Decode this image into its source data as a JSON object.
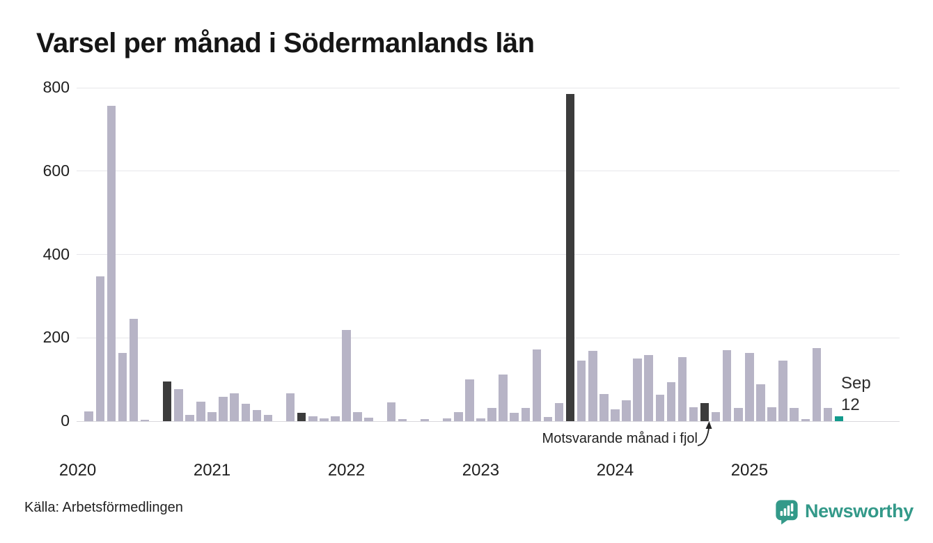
{
  "title": "Varsel per månad i Södermanlands län",
  "source": "Källa: Arbetsförmedlingen",
  "annotation": {
    "text": "Motsvarande månad i fjol"
  },
  "last_point_label": {
    "line1": "Sep",
    "line2": "12"
  },
  "brand": {
    "name": "Newsworthy",
    "color": "#339989"
  },
  "chart_data": {
    "type": "bar",
    "title": "Varsel per månad i Södermanlands län",
    "xlabel": "",
    "ylabel": "",
    "ylim": [
      0,
      800
    ],
    "yticks": [
      0,
      200,
      400,
      600,
      800
    ],
    "grid": "horizontal",
    "x_year_labels": [
      "2020",
      "2021",
      "2022",
      "2023",
      "2024",
      "2025"
    ],
    "colors": {
      "normal": "#b7b4c6",
      "compare": "#3c3c3c",
      "current": "#129a8c"
    },
    "legend": {
      "compare_meaning": "Motsvarande månad i fjol",
      "current_meaning": "Sep 12"
    },
    "series": [
      {
        "m": "Jan 2020",
        "v": 0,
        "t": "normal"
      },
      {
        "m": "Feb 2020",
        "v": 24,
        "t": "normal"
      },
      {
        "m": "Mar 2020",
        "v": 348,
        "t": "normal"
      },
      {
        "m": "Apr 2020",
        "v": 757,
        "t": "normal"
      },
      {
        "m": "May 2020",
        "v": 163,
        "t": "normal"
      },
      {
        "m": "Jun 2020",
        "v": 245,
        "t": "normal"
      },
      {
        "m": "Jul 2020",
        "v": 4,
        "t": "normal"
      },
      {
        "m": "Aug 2020",
        "v": 0,
        "t": "normal"
      },
      {
        "m": "Sep 2020",
        "v": 95,
        "t": "compare"
      },
      {
        "m": "Oct 2020",
        "v": 76,
        "t": "normal"
      },
      {
        "m": "Nov 2020",
        "v": 15,
        "t": "normal"
      },
      {
        "m": "Dec 2020",
        "v": 46,
        "t": "normal"
      },
      {
        "m": "Jan 2021",
        "v": 22,
        "t": "normal"
      },
      {
        "m": "Feb 2021",
        "v": 59,
        "t": "normal"
      },
      {
        "m": "Mar 2021",
        "v": 67,
        "t": "normal"
      },
      {
        "m": "Apr 2021",
        "v": 42,
        "t": "normal"
      },
      {
        "m": "May 2021",
        "v": 27,
        "t": "normal"
      },
      {
        "m": "Jun 2021",
        "v": 15,
        "t": "normal"
      },
      {
        "m": "Jul 2021",
        "v": 0,
        "t": "normal"
      },
      {
        "m": "Aug 2021",
        "v": 67,
        "t": "normal"
      },
      {
        "m": "Sep 2021",
        "v": 20,
        "t": "compare"
      },
      {
        "m": "Oct 2021",
        "v": 11,
        "t": "normal"
      },
      {
        "m": "Nov 2021",
        "v": 6,
        "t": "normal"
      },
      {
        "m": "Dec 2021",
        "v": 11,
        "t": "normal"
      },
      {
        "m": "Jan 2022",
        "v": 218,
        "t": "normal"
      },
      {
        "m": "Feb 2022",
        "v": 21,
        "t": "normal"
      },
      {
        "m": "Mar 2022",
        "v": 8,
        "t": "normal"
      },
      {
        "m": "Apr 2022",
        "v": 0,
        "t": "normal"
      },
      {
        "m": "May 2022",
        "v": 45,
        "t": "normal"
      },
      {
        "m": "Jun 2022",
        "v": 5,
        "t": "normal"
      },
      {
        "m": "Jul 2022",
        "v": 0,
        "t": "normal"
      },
      {
        "m": "Aug 2022",
        "v": 5,
        "t": "normal"
      },
      {
        "m": "Sep 2022",
        "v": 0,
        "t": "compare"
      },
      {
        "m": "Oct 2022",
        "v": 6,
        "t": "normal"
      },
      {
        "m": "Nov 2022",
        "v": 22,
        "t": "normal"
      },
      {
        "m": "Dec 2022",
        "v": 100,
        "t": "normal"
      },
      {
        "m": "Jan 2023",
        "v": 7,
        "t": "normal"
      },
      {
        "m": "Feb 2023",
        "v": 31,
        "t": "normal"
      },
      {
        "m": "Mar 2023",
        "v": 112,
        "t": "normal"
      },
      {
        "m": "Apr 2023",
        "v": 20,
        "t": "normal"
      },
      {
        "m": "May 2023",
        "v": 32,
        "t": "normal"
      },
      {
        "m": "Jun 2023",
        "v": 172,
        "t": "normal"
      },
      {
        "m": "Jul 2023",
        "v": 10,
        "t": "normal"
      },
      {
        "m": "Aug 2023",
        "v": 44,
        "t": "normal"
      },
      {
        "m": "Sep 2023",
        "v": 785,
        "t": "compare"
      },
      {
        "m": "Oct 2023",
        "v": 145,
        "t": "normal"
      },
      {
        "m": "Nov 2023",
        "v": 168,
        "t": "normal"
      },
      {
        "m": "Dec 2023",
        "v": 65,
        "t": "normal"
      },
      {
        "m": "Jan 2024",
        "v": 28,
        "t": "normal"
      },
      {
        "m": "Feb 2024",
        "v": 50,
        "t": "normal"
      },
      {
        "m": "Mar 2024",
        "v": 150,
        "t": "normal"
      },
      {
        "m": "Apr 2024",
        "v": 158,
        "t": "normal"
      },
      {
        "m": "May 2024",
        "v": 63,
        "t": "normal"
      },
      {
        "m": "Jun 2024",
        "v": 93,
        "t": "normal"
      },
      {
        "m": "Jul 2024",
        "v": 154,
        "t": "normal"
      },
      {
        "m": "Aug 2024",
        "v": 33,
        "t": "normal"
      },
      {
        "m": "Sep 2024",
        "v": 43,
        "t": "compare"
      },
      {
        "m": "Oct 2024",
        "v": 21,
        "t": "normal"
      },
      {
        "m": "Nov 2024",
        "v": 170,
        "t": "normal"
      },
      {
        "m": "Dec 2024",
        "v": 31,
        "t": "normal"
      },
      {
        "m": "Jan 2025",
        "v": 164,
        "t": "normal"
      },
      {
        "m": "Feb 2025",
        "v": 89,
        "t": "normal"
      },
      {
        "m": "Mar 2025",
        "v": 34,
        "t": "normal"
      },
      {
        "m": "Apr 2025",
        "v": 145,
        "t": "normal"
      },
      {
        "m": "May 2025",
        "v": 31,
        "t": "normal"
      },
      {
        "m": "Jun 2025",
        "v": 5,
        "t": "normal"
      },
      {
        "m": "Jul 2025",
        "v": 175,
        "t": "normal"
      },
      {
        "m": "Aug 2025",
        "v": 32,
        "t": "normal"
      },
      {
        "m": "Sep 2025",
        "v": 12,
        "t": "current"
      }
    ]
  }
}
